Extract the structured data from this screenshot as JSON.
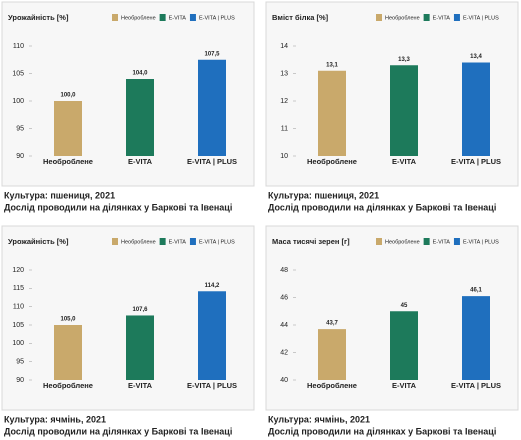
{
  "chart_data": [
    {
      "type": "bar",
      "title": "Урожайність [%]",
      "categories": [
        "Необроблене",
        "E-VITA",
        "E-VITA | PLUS"
      ],
      "values": [
        100.0,
        104.0,
        107.5
      ],
      "value_labels": [
        "100,0",
        "104,0",
        "107,5"
      ],
      "colors": [
        "#c9a96b",
        "#1d7a5b",
        "#1f6fbe"
      ],
      "ylim": [
        90,
        110
      ],
      "yticks": [
        90,
        95,
        100,
        105,
        110
      ],
      "caption": [
        "Культура: пшениця, 2021",
        "Дослід проводили на ділянках у Баркові та Івенаці"
      ]
    },
    {
      "type": "bar",
      "title": "Вміст білка [%]",
      "categories": [
        "Необроблене",
        "E-VITA",
        "E-VITA | PLUS"
      ],
      "values": [
        13.1,
        13.3,
        13.4
      ],
      "value_labels": [
        "13,1",
        "13,3",
        "13,4"
      ],
      "colors": [
        "#c9a96b",
        "#1d7a5b",
        "#1f6fbe"
      ],
      "ylim": [
        10,
        14
      ],
      "yticks": [
        10,
        11,
        12,
        13,
        14
      ],
      "caption": [
        "Культура: пшениця, 2021",
        "Дослід проводили на ділянках у Баркові та Івенаці"
      ]
    },
    {
      "type": "bar",
      "title": "Урожайність [%]",
      "categories": [
        "Необроблене",
        "E-VITA",
        "E-VITA | PLUS"
      ],
      "values": [
        105.0,
        107.6,
        114.2
      ],
      "value_labels": [
        "105,0",
        "107,6",
        "114,2"
      ],
      "colors": [
        "#c9a96b",
        "#1d7a5b",
        "#1f6fbe"
      ],
      "ylim": [
        90,
        120
      ],
      "yticks": [
        90,
        95,
        100,
        105,
        110,
        115,
        120
      ],
      "caption": [
        "Культура: ячмінь, 2021",
        "Дослід проводили на ділянках у Баркові та Івенаці"
      ]
    },
    {
      "type": "bar",
      "title": "Маса тисячі зерен [г]",
      "categories": [
        "Необроблене",
        "E-VITA",
        "E-VITA | PLUS"
      ],
      "values": [
        43.7,
        45,
        46.1
      ],
      "value_labels": [
        "43,7",
        "45",
        "46,1"
      ],
      "colors": [
        "#c9a96b",
        "#1d7a5b",
        "#1f6fbe"
      ],
      "ylim": [
        40,
        48
      ],
      "yticks": [
        40,
        42,
        44,
        46,
        48
      ],
      "caption": [
        "Культура: ячмінь, 2021",
        "Дослід проводили на ділянках у Баркові та Івенаці"
      ]
    }
  ]
}
